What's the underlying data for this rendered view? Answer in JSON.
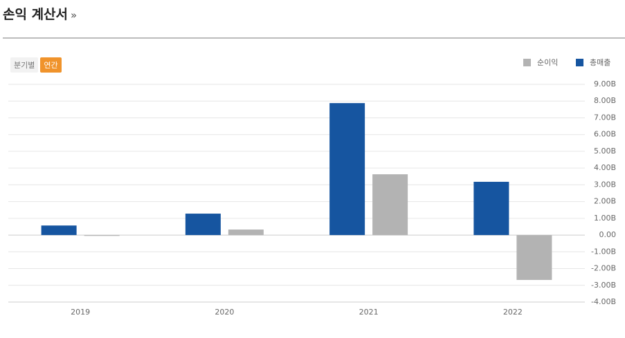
{
  "header": {
    "title": "손익 계산서",
    "more": "»"
  },
  "toggles": [
    "분기별",
    "연간"
  ],
  "chart_data": {
    "type": "bar",
    "categories": [
      "2019",
      "2020",
      "2021",
      "2022"
    ],
    "series": [
      {
        "name": "순이익",
        "color": "#b3b3b3",
        "values": [
          -0.05,
          0.33,
          3.63,
          -2.68
        ]
      },
      {
        "name": "총매출",
        "color": "#1655a0",
        "values": [
          0.57,
          1.28,
          7.88,
          3.18
        ]
      }
    ],
    "ylim": [
      -4,
      9
    ],
    "yticks": [
      {
        "value": 9,
        "label": "9.00B"
      },
      {
        "value": 8,
        "label": "8.00B"
      },
      {
        "value": 7,
        "label": "7.00B"
      },
      {
        "value": 6,
        "label": "6.00B"
      },
      {
        "value": 5,
        "label": "5.00B"
      },
      {
        "value": 4,
        "label": "4.00B"
      },
      {
        "value": 3,
        "label": "3.00B"
      },
      {
        "value": 2,
        "label": "2.00B"
      },
      {
        "value": 1,
        "label": "1.00B"
      },
      {
        "value": 0,
        "label": "0.00"
      },
      {
        "value": -1,
        "label": "-1.00B"
      },
      {
        "value": -2,
        "label": "-2.00B"
      },
      {
        "value": -3,
        "label": "-3.00B"
      },
      {
        "value": -4,
        "label": "-4.00B"
      }
    ],
    "grid": true,
    "legend": "top-right"
  }
}
